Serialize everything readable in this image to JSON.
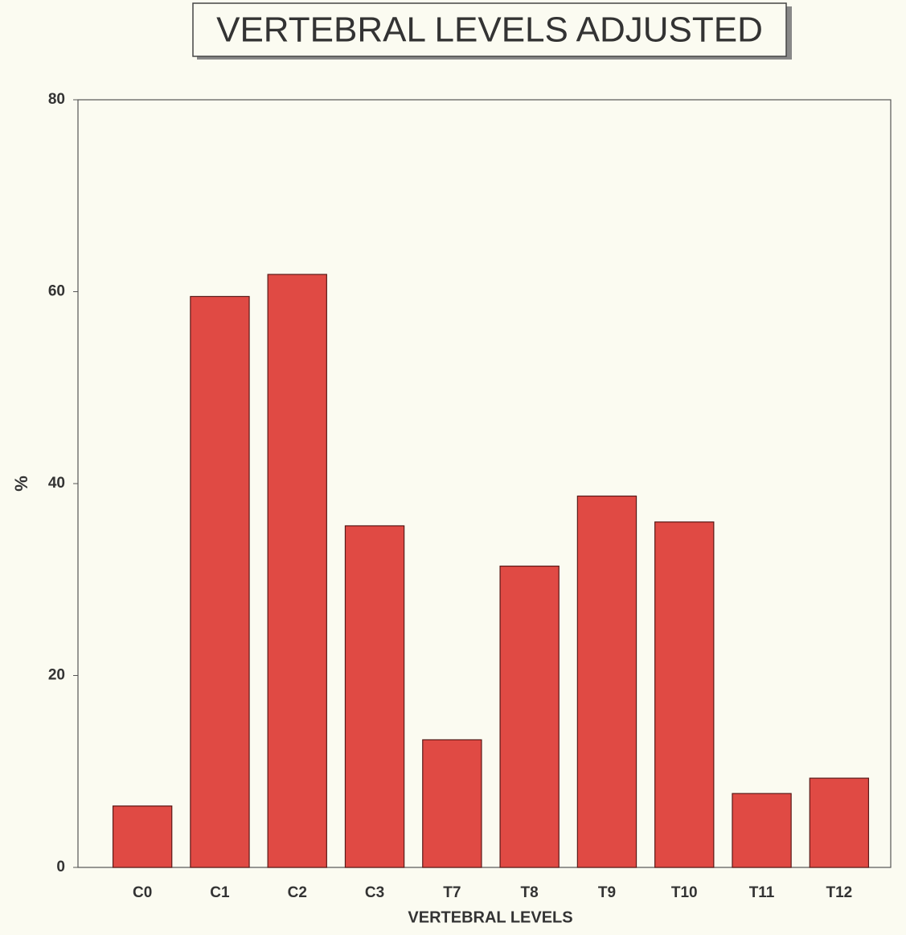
{
  "chart_data": {
    "type": "bar",
    "title": "VERTEBRAL LEVELS ADJUSTED",
    "x_label": "VERTEBRAL LEVELS",
    "y_label": "%",
    "categories": [
      "C0",
      "C1",
      "C2",
      "C3",
      "T7",
      "T8",
      "T9",
      "T10",
      "T11",
      "T12"
    ],
    "values": [
      6.4,
      59.5,
      61.8,
      35.6,
      13.3,
      31.4,
      38.7,
      36.0,
      7.7,
      9.3
    ],
    "color": "#e04a44",
    "ylim": [
      0,
      80
    ],
    "yticks": [
      0,
      20,
      40,
      60,
      80
    ],
    "grid": false
  }
}
